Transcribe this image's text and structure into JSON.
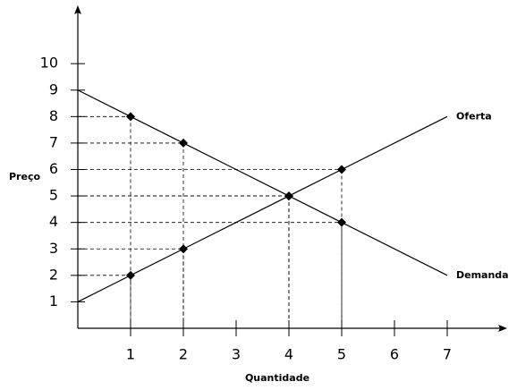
{
  "chart_data": {
    "type": "line",
    "x_label": "Quantidade",
    "y_label": "Preço",
    "xlim": [
      0,
      8
    ],
    "ylim": [
      0,
      12
    ],
    "xticks": [
      1,
      2,
      3,
      4,
      5,
      6,
      7
    ],
    "yticks": [
      1,
      2,
      3,
      4,
      5,
      6,
      7,
      8,
      9,
      10
    ],
    "series": [
      {
        "name": "Demanda",
        "color": "#000000",
        "x": [
          0,
          1,
          2,
          4,
          5,
          7
        ],
        "values": [
          9,
          8,
          7,
          5,
          4,
          2
        ]
      },
      {
        "name": "Oferta",
        "color": "#000000",
        "x": [
          0,
          1,
          2,
          4,
          5,
          7
        ],
        "values": [
          1,
          2,
          3,
          5,
          6,
          8
        ]
      }
    ]
  }
}
